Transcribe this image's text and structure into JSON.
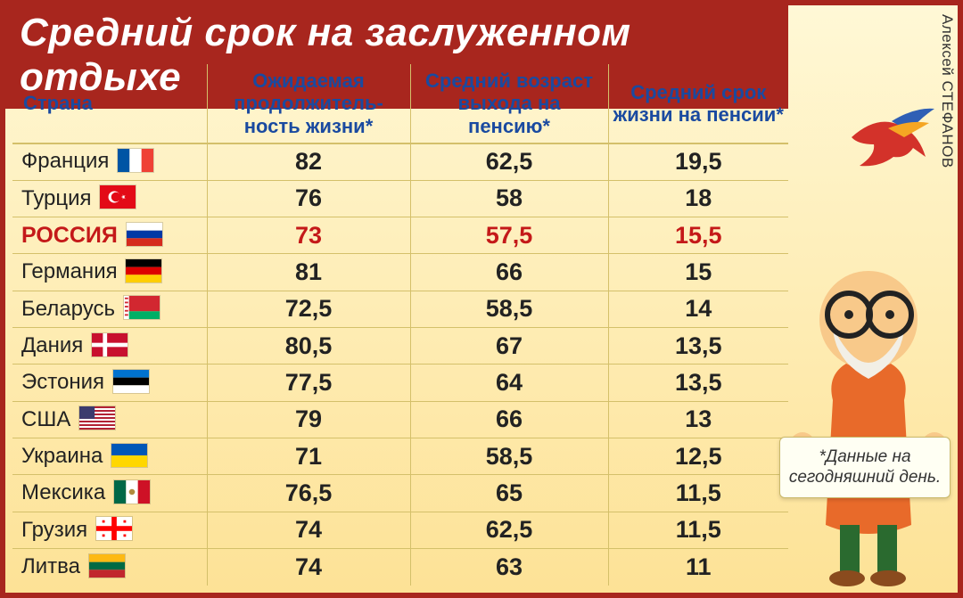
{
  "title": "Средний срок на заслуженном отдыхе",
  "author": "Алексей СТЕФАНОВ",
  "note": "*Данные на сегодняшний день.",
  "columns": {
    "country": "Страна",
    "life": "Ожидаемая продолжитель-ность жизни*",
    "retire": "Средний возраст выхода на пенсию*",
    "years": "Средний срок жизни на пенсии*"
  },
  "rows": [
    {
      "name": "Франция",
      "flag": "fr",
      "life": "82",
      "retire": "62,5",
      "years": "19,5",
      "hl": false
    },
    {
      "name": "Турция",
      "flag": "tr",
      "life": "76",
      "retire": "58",
      "years": "18",
      "hl": false
    },
    {
      "name": "РОССИЯ",
      "flag": "ru",
      "life": "73",
      "retire": "57,5",
      "years": "15,5",
      "hl": true
    },
    {
      "name": "Германия",
      "flag": "de",
      "life": "81",
      "retire": "66",
      "years": "15",
      "hl": false
    },
    {
      "name": "Беларусь",
      "flag": "by",
      "life": "72,5",
      "retire": "58,5",
      "years": "14",
      "hl": false
    },
    {
      "name": "Дания",
      "flag": "dk",
      "life": "80,5",
      "retire": "67",
      "years": "13,5",
      "hl": false
    },
    {
      "name": "Эстония",
      "flag": "ee",
      "life": "77,5",
      "retire": "64",
      "years": "13,5",
      "hl": false
    },
    {
      "name": "США",
      "flag": "us",
      "life": "79",
      "retire": "66",
      "years": "13",
      "hl": false
    },
    {
      "name": "Украина",
      "flag": "ua",
      "life": "71",
      "retire": "58,5",
      "years": "12,5",
      "hl": false
    },
    {
      "name": "Мексика",
      "flag": "mx",
      "life": "76,5",
      "retire": "65",
      "years": "11,5",
      "hl": false
    },
    {
      "name": "Грузия",
      "flag": "ge",
      "life": "74",
      "retire": "62,5",
      "years": "11,5",
      "hl": false
    },
    {
      "name": "Литва",
      "flag": "lt",
      "life": "74",
      "retire": "63",
      "years": "11",
      "hl": false
    }
  ],
  "palette": {
    "frame": "#a8261e",
    "grid": "#d4c06a",
    "header_text": "#1a4aa0",
    "highlight": "#c41919"
  }
}
